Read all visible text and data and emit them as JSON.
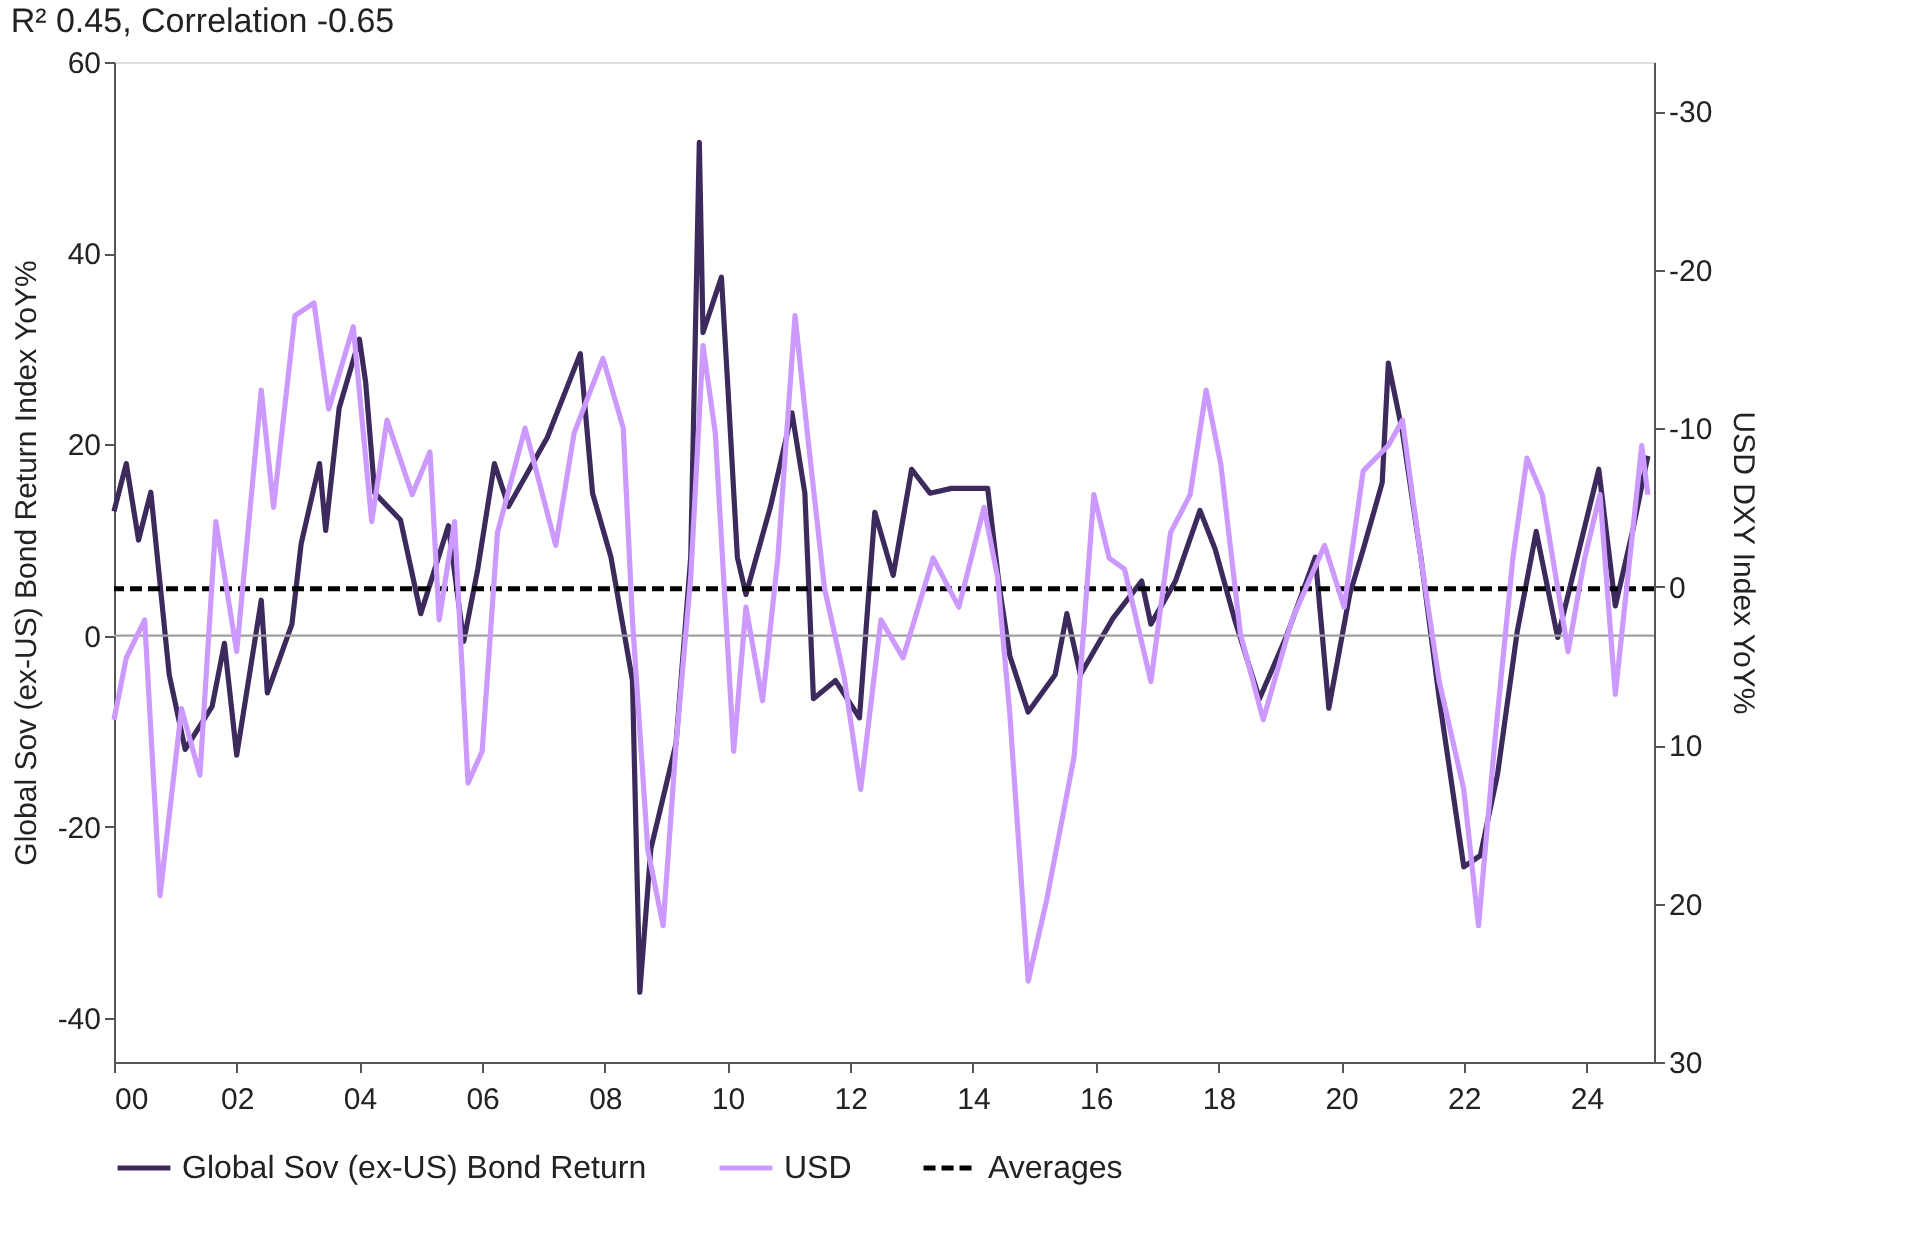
{
  "chart_data": {
    "type": "line",
    "title": "R² 0.45, Correlation -0.65",
    "ylabel": "Global Sov (ex-US) Bond Return Index YoY%",
    "y2label": "USD DXY Index YoY%",
    "xlim": [
      2000,
      2025.1
    ],
    "xticks": [
      {
        "value": 2000,
        "label": "00"
      },
      {
        "value": 2002,
        "label": "02"
      },
      {
        "value": 2004,
        "label": "04"
      },
      {
        "value": 2006,
        "label": "06"
      },
      {
        "value": 2008,
        "label": "08"
      },
      {
        "value": 2010,
        "label": "10"
      },
      {
        "value": 2012,
        "label": "12"
      },
      {
        "value": 2014,
        "label": "14"
      },
      {
        "value": 2016,
        "label": "16"
      },
      {
        "value": 2018,
        "label": "18"
      },
      {
        "value": 2020,
        "label": "20"
      },
      {
        "value": 2022,
        "label": "22"
      },
      {
        "value": 2024,
        "label": "24"
      }
    ],
    "ylim": [
      -44.6,
      60
    ],
    "yticks": [
      -40,
      -20,
      0,
      20,
      40,
      60
    ],
    "y2lim": [
      30,
      -33.1
    ],
    "y2ticks": [
      -30,
      -20,
      -10,
      0,
      10,
      20,
      30
    ],
    "series": [
      {
        "name": "Global Sov (ex-US) Bond Return",
        "color": "#3d2a5c",
        "x": [
          2000.0,
          2000.2,
          2000.4,
          2000.6,
          2000.9,
          2001.16,
          2001.6,
          2001.8,
          2002.0,
          2002.4,
          2002.5,
          2002.9,
          2003.05,
          2003.35,
          2003.45,
          2003.67,
          2004.0,
          2004.1,
          2004.25,
          2004.67,
          2005.0,
          2005.45,
          2005.7,
          2005.93,
          2006.2,
          2006.43,
          2007.06,
          2007.6,
          2007.8,
          2008.1,
          2008.45,
          2008.57,
          2008.75,
          2009.16,
          2009.4,
          2009.54,
          2009.6,
          2009.9,
          2010.0,
          2010.16,
          2010.3,
          2010.7,
          2011.05,
          2011.26,
          2011.4,
          2011.76,
          2012.15,
          2012.4,
          2012.7,
          2013.0,
          2013.3,
          2013.65,
          2014.24,
          2014.43,
          2014.6,
          2014.9,
          2015.34,
          2015.53,
          2015.75,
          2016.28,
          2016.75,
          2016.9,
          2017.3,
          2017.7,
          2017.95,
          2018.26,
          2018.67,
          2019.1,
          2019.58,
          2019.8,
          2020.14,
          2020.36,
          2020.67,
          2020.77,
          2021.0,
          2021.3,
          2021.6,
          2022.0,
          2022.27,
          2022.55,
          2022.87,
          2023.18,
          2023.53,
          2023.85,
          2024.2,
          2024.47,
          2024.75,
          2025.0
        ],
        "values": [
          13,
          18,
          10,
          15,
          -4.1,
          -11.9,
          -7.4,
          -0.8,
          -12.5,
          3.7,
          -6,
          1.2,
          9.6,
          18,
          11,
          23.8,
          31,
          26.6,
          14.9,
          12.1,
          2.3,
          11.5,
          -0.6,
          7,
          18,
          13.5,
          20.7,
          29.5,
          14.9,
          8.2,
          -4.7,
          -37.3,
          -22.3,
          -11.3,
          8.2,
          51.6,
          31.7,
          37.5,
          26.6,
          8.2,
          4.3,
          13.5,
          23.3,
          14.9,
          -6.6,
          -4.7,
          -8.6,
          12.9,
          6.3,
          17.4,
          14.9,
          15.4,
          15.4,
          5.1,
          -2.1,
          -8,
          -4.1,
          2.3,
          -4.1,
          1.8,
          5.7,
          1.2,
          5.7,
          13.1,
          9,
          1.8,
          -6.6,
          -0.2,
          8.2,
          -7.6,
          4.3,
          9,
          16,
          28.5,
          21.3,
          8.2,
          -6.6,
          -24.2,
          -23,
          -14.5,
          0.4,
          10.9,
          -0.2,
          8.2,
          17.4,
          3.1,
          10.9,
          18.8
        ]
      },
      {
        "name": "USD",
        "color": "#cc99ff",
        "axis": "y2",
        "x": [
          2000.0,
          2000.2,
          2000.5,
          2000.75,
          2001.1,
          2001.4,
          2001.66,
          2002.0,
          2002.4,
          2002.6,
          2002.95,
          2003.26,
          2003.5,
          2003.9,
          2004.2,
          2004.45,
          2004.86,
          2005.15,
          2005.3,
          2005.55,
          2005.77,
          2006.0,
          2006.25,
          2006.7,
          2007.2,
          2007.5,
          2007.97,
          2008.3,
          2008.45,
          2008.7,
          2008.95,
          2009.16,
          2009.4,
          2009.6,
          2009.8,
          2010.1,
          2010.3,
          2010.57,
          2010.82,
          2011.1,
          2011.3,
          2011.58,
          2011.9,
          2012.17,
          2012.5,
          2012.86,
          2013.35,
          2013.77,
          2014.18,
          2014.4,
          2014.6,
          2014.9,
          2015.2,
          2015.65,
          2015.97,
          2016.22,
          2016.47,
          2016.9,
          2017.22,
          2017.54,
          2017.8,
          2018.04,
          2018.36,
          2018.73,
          2019.2,
          2019.73,
          2020.05,
          2020.36,
          2020.77,
          2021.0,
          2021.3,
          2021.6,
          2022.0,
          2022.24,
          2022.5,
          2022.8,
          2023.03,
          2023.28,
          2023.7,
          2023.97,
          2024.22,
          2024.47,
          2024.75,
          2024.9,
          2025.0
        ],
        "values": [
          8.4,
          4.5,
          2.1,
          19.5,
          7.7,
          11.9,
          -4.1,
          4.1,
          -12.4,
          -5,
          -17.1,
          -17.9,
          -11.2,
          -16.4,
          -4.1,
          -10.5,
          -5.8,
          -8.5,
          2.1,
          -4.1,
          12.4,
          10.4,
          -3.4,
          -10,
          -2.6,
          -9.7,
          -14.4,
          -10,
          2.1,
          16.6,
          21.4,
          10,
          -0.6,
          -15.2,
          -9.7,
          10.4,
          1.3,
          7.2,
          -1.8,
          -17.1,
          -9.7,
          0.1,
          5.7,
          12.8,
          2.1,
          4.5,
          -1.8,
          1.3,
          -5,
          -0.6,
          8,
          24.9,
          19.8,
          10.7,
          -5.8,
          -1.8,
          -1.1,
          6,
          -3.4,
          -5.8,
          -12.4,
          -7.7,
          3,
          8.4,
          2.1,
          -2.6,
          1.3,
          -7.3,
          -8.9,
          -10.5,
          -1.8,
          6,
          12.8,
          21.4,
          10,
          -1.8,
          -8.1,
          -5.8,
          4.1,
          -1.8,
          -5.8,
          6.8,
          -3.4,
          -8.9,
          -5.8
        ]
      }
    ],
    "ref_lines": [
      {
        "axis": "y",
        "value": 0,
        "color": "#a0a0a0"
      },
      {
        "axis": "y",
        "value": 4.9,
        "label": "Averages",
        "color": "#000000",
        "line_style": "dashed"
      }
    ],
    "legend": "bottom",
    "grid": false,
    "line_style": "solid"
  }
}
